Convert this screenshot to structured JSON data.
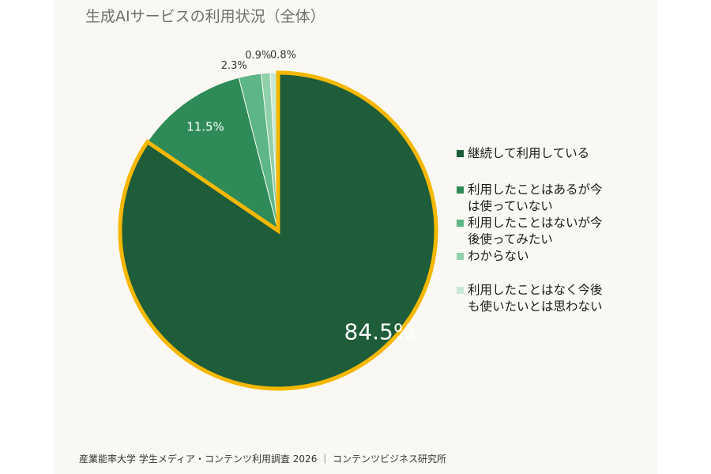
{
  "chart_data": {
    "type": "pie",
    "title": "生成AIサービスの利用状況（全体）",
    "slices": [
      {
        "label": "継続して利用している",
        "value": 84.5,
        "display": "84.5%",
        "color": "#1e5c3a",
        "highlighted": true
      },
      {
        "label": "利用したことはあるが今は使っていない",
        "value": 11.5,
        "display": "11.5%",
        "color": "#2e8b57",
        "highlighted": false
      },
      {
        "label": "利用したことはないが今後使ってみたい",
        "value": 2.3,
        "display": "2.3%",
        "color": "#5cb685",
        "highlighted": false
      },
      {
        "label": "わからない",
        "value": 0.9,
        "display": "0.9%",
        "color": "#8fd0aa",
        "highlighted": false
      },
      {
        "label": "利用したことはなく今後も使いたいとは思わない",
        "value": 0.8,
        "display": "0.8%",
        "color": "#c7e8d4",
        "highlighted": false
      }
    ],
    "highlight_color": "#f5b800",
    "legend_position": "right"
  },
  "legend": [
    {
      "lines": [
        "継続して利用している"
      ]
    },
    {
      "lines": [
        "利用したことはあるが今",
        "は使っていない"
      ]
    },
    {
      "lines": [
        "利用したことはないが今",
        "後使ってみたい"
      ]
    },
    {
      "lines": [
        "わからない"
      ]
    },
    {
      "lines": [
        "利用したことはなく今後",
        "も使いたいとは思わない"
      ]
    }
  ],
  "footer": "産業能率大学 学生メディア・コンテンツ利用調査 2026 ｜ コンテンツビジネス研究所"
}
